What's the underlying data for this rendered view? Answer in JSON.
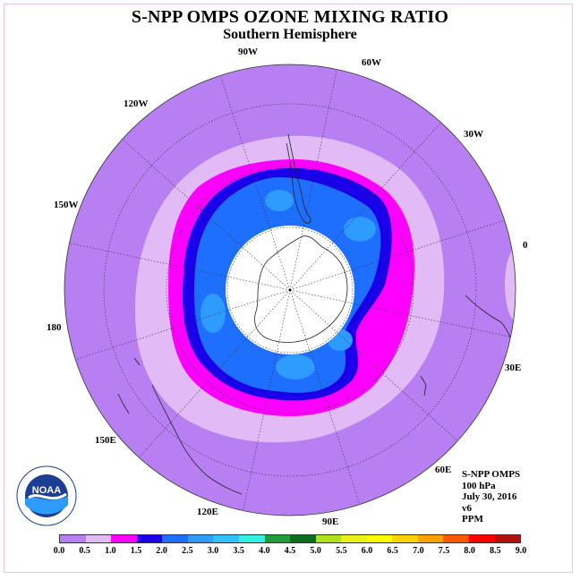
{
  "title": "S-NPP OMPS OZONE MIXING RATIO",
  "subtitle": "Southern Hemisphere",
  "longitude_labels": {
    "lon_90w": "90W",
    "lon_60w": "60W",
    "lon_30w": "30W",
    "lon_0": "0",
    "lon_30e": "30E",
    "lon_60e": "60E",
    "lon_90e": "90E",
    "lon_120e": "120E",
    "lon_150e": "150E",
    "lon_180": "180",
    "lon_150w": "150W",
    "lon_120w": "120W"
  },
  "info": {
    "instrument": "S-NPP OMPS",
    "level": "100 hPa",
    "date": "July 30, 2016",
    "version": "v6",
    "units": "PPM"
  },
  "logo": {
    "text": "NOAA",
    "icon": "noaa-logo"
  },
  "colorbar": {
    "ticks": [
      "0.0",
      "0.5",
      "1.0",
      "1.5",
      "2.0",
      "2.5",
      "3.0",
      "3.5",
      "4.0",
      "4.5",
      "5.0",
      "5.5",
      "6.0",
      "6.5",
      "7.0",
      "7.5",
      "8.0",
      "8.5",
      "9.0"
    ],
    "colors": [
      "#b77ff2",
      "#e2baf6",
      "#ff00ff",
      "#1a00e8",
      "#1f6fff",
      "#2e9bff",
      "#33c0ff",
      "#33f0e0",
      "#1e9e3a",
      "#0c6e20",
      "#b0e01c",
      "#e8f21a",
      "#ffff00",
      "#ffd200",
      "#ff9f00",
      "#ff5a00",
      "#ff0000",
      "#b01010"
    ]
  },
  "map_colors": {
    "background": "#b77ff2",
    "band_light": "#e2baf6",
    "band_magenta": "#ff00ff",
    "band_dark_blue": "#1a00e8",
    "band_blue": "#1f6fff",
    "band_light_blue": "#2e9bff",
    "pole_cap": "#ffffff"
  }
}
